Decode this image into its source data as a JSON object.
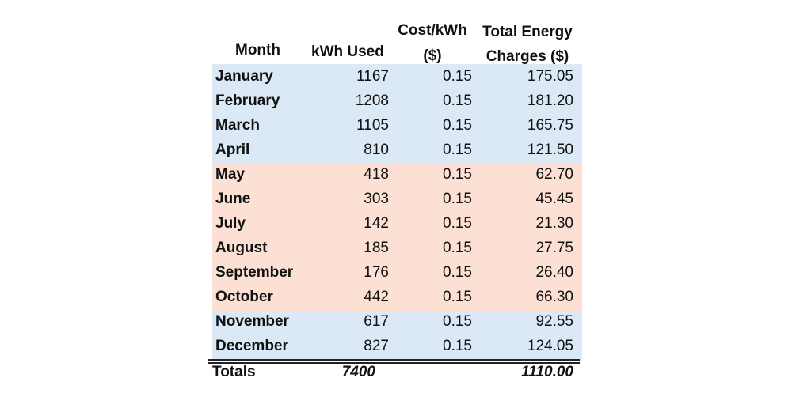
{
  "headers": {
    "month": "Month",
    "kwh": "kWh Used",
    "cost_line1": "Cost/kWh",
    "cost_line2": "($)",
    "total_line1": "Total Energy",
    "total_line2": "Charges ($)"
  },
  "colors": {
    "winter_band": "#dbe8f5",
    "summer_band": "#fbe0d3",
    "text": "#111111"
  },
  "rows": [
    {
      "month": "January",
      "kwh": "1167",
      "cost": "0.15",
      "total": "175.05",
      "band": "winter"
    },
    {
      "month": "February",
      "kwh": "1208",
      "cost": "0.15",
      "total": "181.20",
      "band": "winter"
    },
    {
      "month": "March",
      "kwh": "1105",
      "cost": "0.15",
      "total": "165.75",
      "band": "winter"
    },
    {
      "month": "April",
      "kwh": "810",
      "cost": "0.15",
      "total": "121.50",
      "band": "winter"
    },
    {
      "month": "May",
      "kwh": "418",
      "cost": "0.15",
      "total": "62.70",
      "band": "summer"
    },
    {
      "month": "June",
      "kwh": "303",
      "cost": "0.15",
      "total": "45.45",
      "band": "summer"
    },
    {
      "month": "July",
      "kwh": "142",
      "cost": "0.15",
      "total": "21.30",
      "band": "summer"
    },
    {
      "month": "August",
      "kwh": "185",
      "cost": "0.15",
      "total": "27.75",
      "band": "summer"
    },
    {
      "month": "September",
      "kwh": "176",
      "cost": "0.15",
      "total": "26.40",
      "band": "summer"
    },
    {
      "month": "October",
      "kwh": "442",
      "cost": "0.15",
      "total": "66.30",
      "band": "summer"
    },
    {
      "month": "November",
      "kwh": "617",
      "cost": "0.15",
      "total": "92.55",
      "band": "winter"
    },
    {
      "month": "December",
      "kwh": "827",
      "cost": "0.15",
      "total": "124.05",
      "band": "winter"
    }
  ],
  "totals": {
    "label": "Totals",
    "kwh": "7400",
    "total": "1110.00"
  }
}
